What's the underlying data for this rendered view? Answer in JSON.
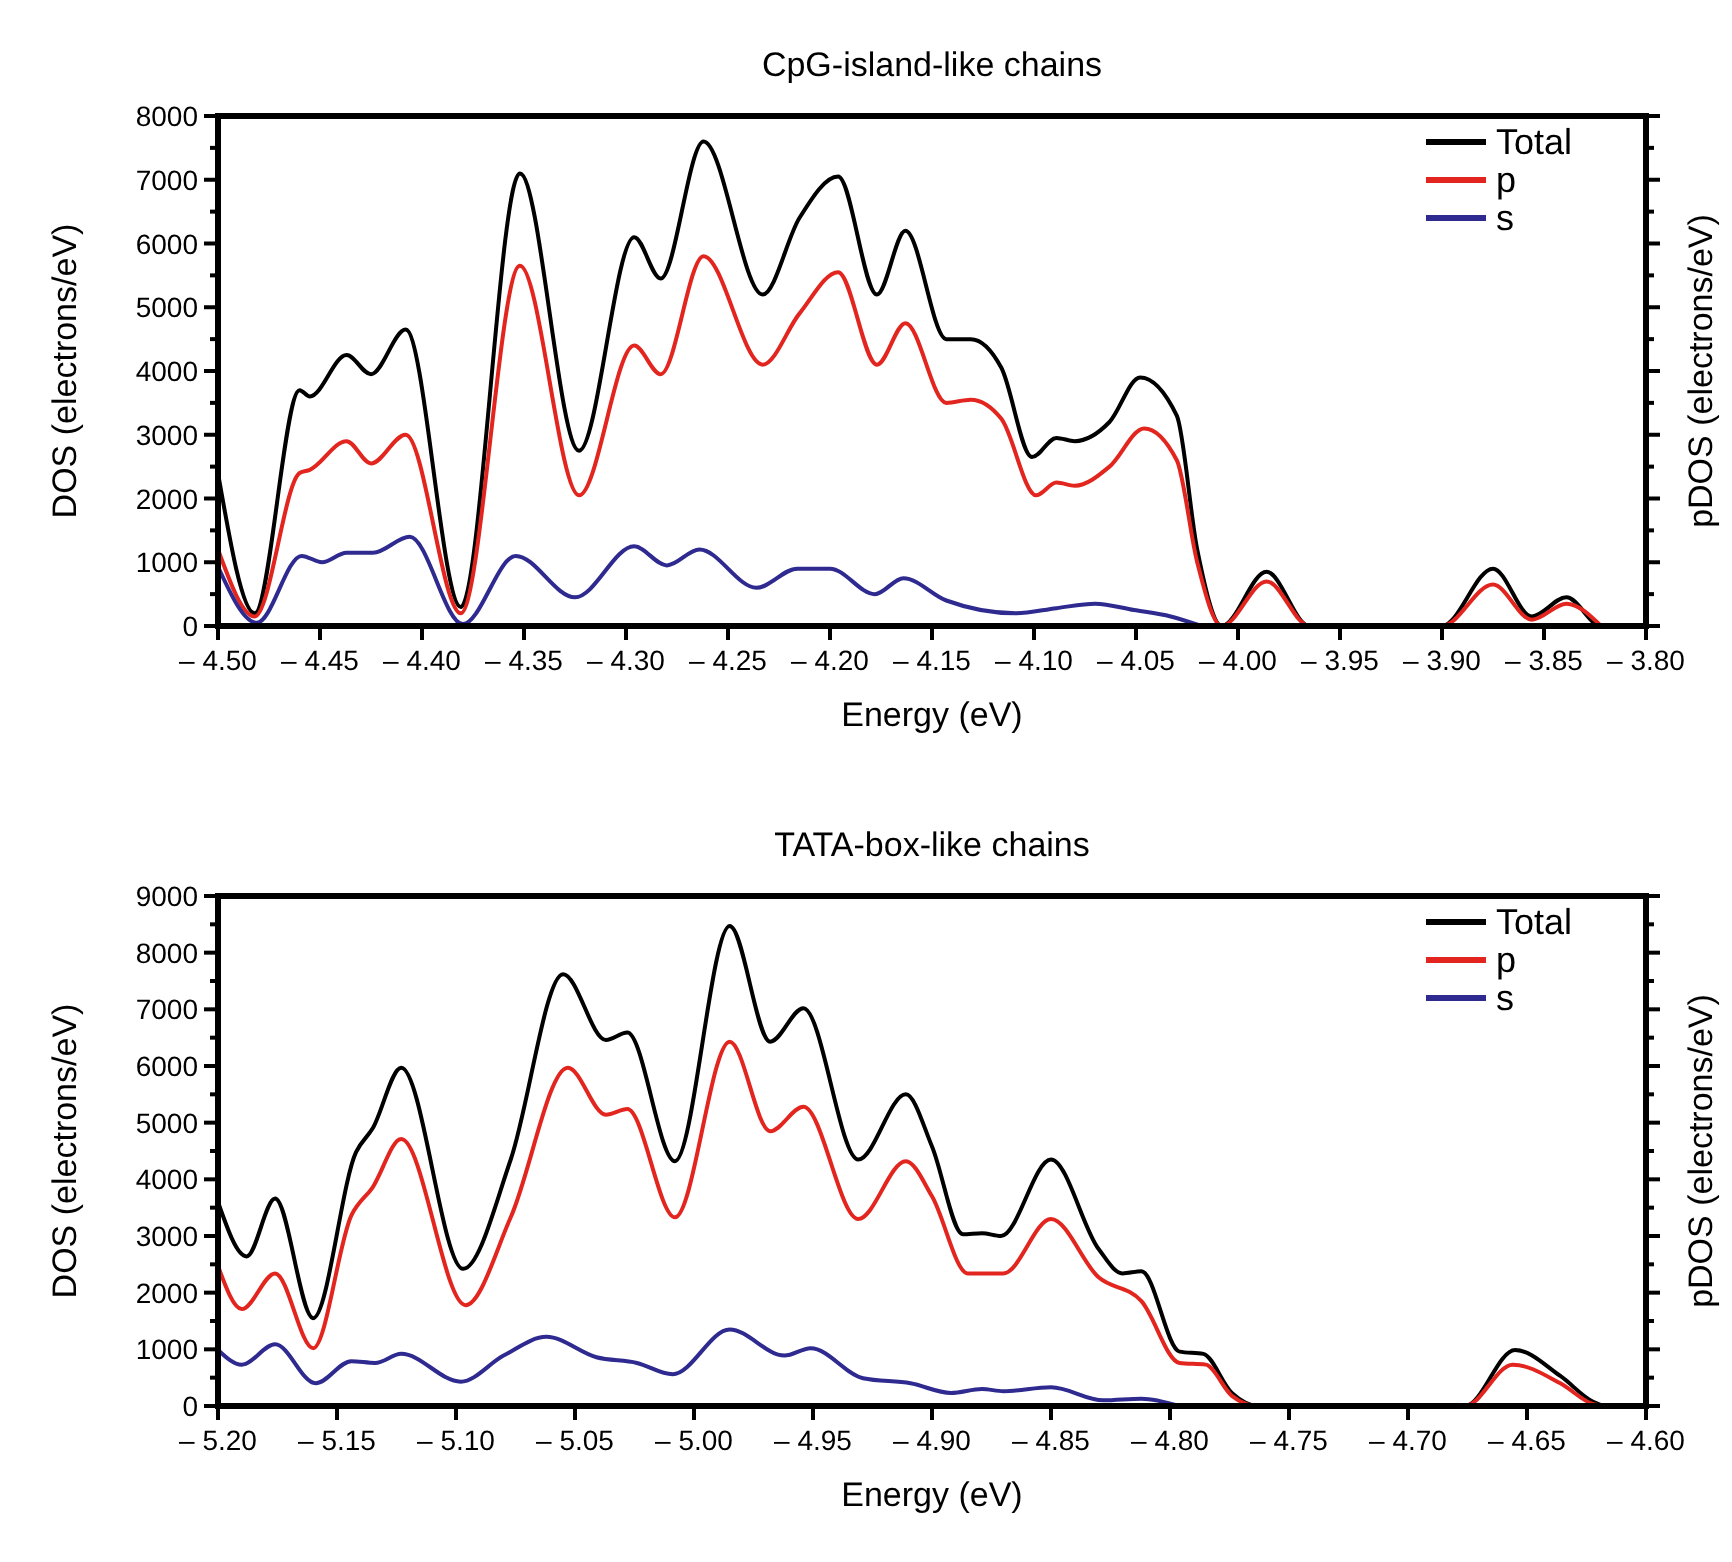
{
  "chart_data": [
    {
      "type": "line",
      "title": "CpG-island-like chains",
      "xlabel": "Energy (eV)",
      "ylabel": "DOS (electrons/eV)",
      "y2label": "pDOS (electrons/eV)",
      "legend": "top right",
      "xlim": [
        -4.5,
        -3.8
      ],
      "xticks": [
        {
          "value": -4.5,
          "label": "– 4.50"
        },
        {
          "value": -4.45,
          "label": "– 4.45"
        },
        {
          "value": -4.4,
          "label": "– 4.40"
        },
        {
          "value": -4.35,
          "label": "– 4.35"
        },
        {
          "value": -4.3,
          "label": "– 4.30"
        },
        {
          "value": -4.25,
          "label": "– 4.25"
        },
        {
          "value": -4.2,
          "label": "– 4.20"
        },
        {
          "value": -4.15,
          "label": "– 4.15"
        },
        {
          "value": -4.1,
          "label": "– 4.10"
        },
        {
          "value": -4.05,
          "label": "– 4.05"
        },
        {
          "value": -4.0,
          "label": "– 4.00"
        },
        {
          "value": -3.95,
          "label": "– 3.95"
        },
        {
          "value": -3.9,
          "label": "– 3.90"
        },
        {
          "value": -3.85,
          "label": "– 3.85"
        },
        {
          "value": -3.8,
          "label": "– 3.80"
        }
      ],
      "ylim": [
        0,
        8000
      ],
      "yticks": [
        0,
        {
          "value": 500,
          "label": null
        },
        1000,
        {
          "value": 1500,
          "label": null
        },
        2000,
        {
          "value": 2500,
          "label": null
        },
        3000,
        {
          "value": 3500,
          "label": null
        },
        4000,
        {
          "value": 4500,
          "label": null
        },
        5000,
        {
          "value": 5500,
          "label": null
        },
        6000,
        {
          "value": 6500,
          "label": null
        },
        7000,
        {
          "value": 7500,
          "label": null
        },
        8000
      ],
      "series": [
        {
          "name": "Total",
          "color": "#000000",
          "x": [
            -4.5,
            -4.482,
            -4.46,
            -4.455,
            -4.437,
            -4.425,
            -4.408,
            -4.381,
            -4.352,
            -4.323,
            -4.296,
            -4.283,
            -4.262,
            -4.233,
            -4.215,
            -4.196,
            -4.177,
            -4.163,
            -4.143,
            -4.131,
            -4.116,
            -4.101,
            -4.089,
            -4.08,
            -4.063,
            -4.048,
            -4.03,
            -4.02,
            -4.008,
            -3.986,
            -3.965,
            -3.9,
            -3.875,
            -3.856,
            -3.839,
            -3.822,
            -3.8
          ],
          "values": [
            2400,
            200,
            3700,
            3600,
            4250,
            3950,
            4650,
            300,
            7100,
            2750,
            6100,
            5450,
            7600,
            5200,
            6400,
            7050,
            5200,
            6200,
            4500,
            4500,
            4050,
            2650,
            2950,
            2900,
            3200,
            3900,
            3300,
            1200,
            0,
            850,
            0,
            0,
            900,
            150,
            450,
            0,
            0
          ]
        },
        {
          "name": "p",
          "color": "#e2261f",
          "x": [
            -4.5,
            -4.482,
            -4.46,
            -4.455,
            -4.437,
            -4.425,
            -4.408,
            -4.381,
            -4.352,
            -4.323,
            -4.296,
            -4.283,
            -4.262,
            -4.233,
            -4.215,
            -4.196,
            -4.177,
            -4.163,
            -4.143,
            -4.131,
            -4.116,
            -4.099,
            -4.089,
            -4.08,
            -4.063,
            -4.046,
            -4.03,
            -4.02,
            -4.008,
            -3.986,
            -3.965,
            -3.9,
            -3.875,
            -3.856,
            -3.839,
            -3.822
          ],
          "values": [
            1200,
            150,
            2400,
            2450,
            2900,
            2550,
            3000,
            200,
            5650,
            2050,
            4400,
            3950,
            5800,
            4100,
            4900,
            5550,
            4100,
            4750,
            3500,
            3550,
            3250,
            2050,
            2250,
            2200,
            2500,
            3100,
            2600,
            1000,
            0,
            700,
            0,
            0,
            650,
            100,
            350,
            0
          ]
        },
        {
          "name": "s",
          "color": "#2e2a8f",
          "x": [
            -4.5,
            -4.481,
            -4.459,
            -4.449,
            -4.437,
            -4.424,
            -4.406,
            -4.38,
            -4.354,
            -4.325,
            -4.296,
            -4.28,
            -4.264,
            -4.236,
            -4.216,
            -4.2,
            -4.178,
            -4.164,
            -4.143,
            -4.109,
            -4.089,
            -4.07,
            -4.051,
            -4.033,
            -4.018
          ],
          "values": [
            930,
            50,
            1100,
            1000,
            1150,
            1150,
            1400,
            30,
            1100,
            450,
            1250,
            950,
            1200,
            600,
            900,
            900,
            500,
            750,
            400,
            200,
            280,
            350,
            250,
            150,
            0
          ]
        }
      ]
    },
    {
      "type": "line",
      "title": "TATA-box-like chains",
      "xlabel": "Energy (eV)",
      "ylabel": "DOS (electrons/eV)",
      "y2label": "pDOS (electrons/eV)",
      "legend": "top right",
      "xlim": [
        -5.2,
        -4.6
      ],
      "xticks": [
        {
          "value": -5.2,
          "label": "– 5.20"
        },
        {
          "value": -5.15,
          "label": "– 5.15"
        },
        {
          "value": -5.1,
          "label": "– 5.10"
        },
        {
          "value": -5.05,
          "label": "– 5.05"
        },
        {
          "value": -5.0,
          "label": "– 5.00"
        },
        {
          "value": -4.95,
          "label": "– 4.95"
        },
        {
          "value": -4.9,
          "label": "– 4.90"
        },
        {
          "value": -4.85,
          "label": "– 4.85"
        },
        {
          "value": -4.8,
          "label": "– 4.80"
        },
        {
          "value": -4.75,
          "label": "– 4.75"
        },
        {
          "value": -4.7,
          "label": "– 4.70"
        },
        {
          "value": -4.65,
          "label": "– 4.65"
        },
        {
          "value": -4.6,
          "label": "– 4.60"
        }
      ],
      "ylim": [
        0,
        9000
      ],
      "yticks": [
        0,
        {
          "value": 500,
          "label": null
        },
        1000,
        {
          "value": 1500,
          "label": null
        },
        2000,
        {
          "value": 2500,
          "label": null
        },
        3000,
        {
          "value": 3500,
          "label": null
        },
        4000,
        {
          "value": 4500,
          "label": null
        },
        5000,
        {
          "value": 5500,
          "label": null
        },
        6000,
        {
          "value": 6500,
          "label": null
        },
        7000,
        {
          "value": 7500,
          "label": null
        },
        8000,
        {
          "value": 8500,
          "label": null
        },
        9000
      ],
      "series": [
        {
          "name": "Total",
          "color": "#000000",
          "x": [
            -5.2,
            -5.188,
            -5.176,
            -5.16,
            -5.142,
            -5.135,
            -5.123,
            -5.097,
            -5.077,
            -5.055,
            -5.037,
            -5.028,
            -5.008,
            -4.985,
            -4.968,
            -4.954,
            -4.931,
            -4.911,
            -4.9,
            -4.887,
            -4.879,
            -4.871,
            -4.85,
            -4.83,
            -4.82,
            -4.812,
            -4.796,
            -4.786,
            -4.774,
            -4.763,
            -4.676,
            -4.655,
            -4.636,
            -4.622,
            -4.617,
            -4.6
          ],
          "values": [
            3600,
            2640,
            3660,
            1550,
            4480,
            4900,
            5970,
            2420,
            4350,
            7620,
            6460,
            6590,
            4320,
            8470,
            6430,
            7020,
            4350,
            5500,
            4580,
            3030,
            3050,
            3000,
            4350,
            2770,
            2340,
            2380,
            960,
            920,
            230,
            0,
            0,
            990,
            530,
            70,
            0,
            0
          ]
        },
        {
          "name": "p",
          "color": "#e2261f",
          "x": [
            -5.2,
            -5.19,
            -5.176,
            -5.16,
            -5.144,
            -5.135,
            -5.123,
            -5.096,
            -5.077,
            -5.053,
            -5.037,
            -5.028,
            -5.008,
            -4.985,
            -4.968,
            -4.954,
            -4.931,
            -4.911,
            -4.9,
            -4.885,
            -4.87,
            -4.85,
            -4.83,
            -4.812,
            -4.796,
            -4.785,
            -4.774,
            -4.763,
            -4.676,
            -4.656,
            -4.636,
            -4.622,
            -4.617
          ],
          "values": [
            2470,
            1710,
            2340,
            1020,
            3360,
            3860,
            4710,
            1780,
            3330,
            5970,
            5140,
            5240,
            3330,
            6430,
            4850,
            5280,
            3300,
            4320,
            3700,
            2340,
            2340,
            3300,
            2270,
            1850,
            760,
            730,
            180,
            0,
            0,
            730,
            400,
            30,
            0
          ]
        },
        {
          "name": "s",
          "color": "#2e2a8f",
          "x": [
            -5.2,
            -5.19,
            -5.176,
            -5.159,
            -5.144,
            -5.134,
            -5.123,
            -5.098,
            -5.08,
            -5.062,
            -5.041,
            -5.024,
            -5.009,
            -4.985,
            -4.962,
            -4.951,
            -4.929,
            -4.909,
            -4.892,
            -4.879,
            -4.87,
            -4.85,
            -4.828,
            -4.812,
            -4.796
          ],
          "values": [
            990,
            730,
            1090,
            400,
            790,
            760,
            920,
            430,
            890,
            1220,
            860,
            760,
            560,
            1350,
            890,
            1020,
            490,
            400,
            230,
            300,
            260,
            330,
            100,
            130,
            0
          ]
        }
      ]
    }
  ]
}
